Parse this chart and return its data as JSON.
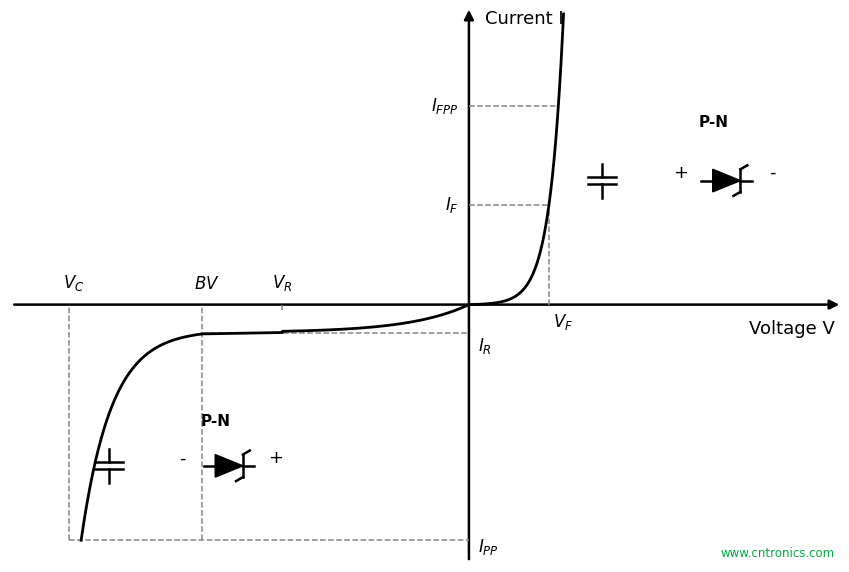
{
  "xlabel": "Voltage V",
  "ylabel": "Current I",
  "bg_color": "#ffffff",
  "curve_color": "#000000",
  "axis_color": "#000000",
  "dashed_color": "#888888",
  "text_color": "#000000",
  "xlim": [
    -5.2,
    4.2
  ],
  "ylim": [
    -4.2,
    4.8
  ],
  "vf": 0.9,
  "vr": -2.1,
  "bv": -3.0,
  "vc": -4.5,
  "i_f": 1.6,
  "i_fpp": 3.2,
  "i_r": -0.45,
  "i_pp": -3.8,
  "watermark": "www.cntronics.com"
}
